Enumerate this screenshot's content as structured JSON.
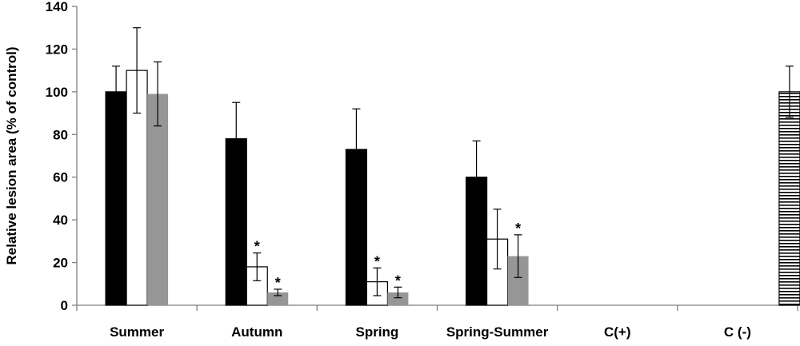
{
  "chart_data": {
    "type": "bar",
    "title": "",
    "xlabel": "",
    "ylabel": "Relative lesion area  (% of control)",
    "ylim": [
      0,
      140
    ],
    "yticks": [
      "0",
      "20",
      "40",
      "60",
      "80",
      "100",
      "120",
      "140"
    ],
    "grid": false,
    "legend": "none",
    "categories": [
      "Summer",
      "Autumn",
      "Spring",
      "Spring-Summer",
      "C(+)",
      "C (-)"
    ],
    "series": [
      {
        "color": "#000000",
        "fill": "solid",
        "values": [
          100,
          78,
          73,
          null,
          null,
          null
        ],
        "errors": [
          12,
          17,
          19,
          null,
          null,
          null
        ],
        "marks": [
          "",
          "",
          "",
          "",
          "",
          ""
        ]
      },
      {
        "color": "#000000",
        "fill": "solid",
        "values": [
          null,
          null,
          null,
          60,
          null,
          null
        ],
        "errors": [
          null,
          null,
          null,
          17,
          null,
          null
        ],
        "marks": [
          "",
          "",
          "",
          "",
          "",
          ""
        ]
      },
      {
        "color": "#ffffff",
        "fill": "outline",
        "values": [
          110,
          18,
          11,
          31,
          null,
          null
        ],
        "errors": [
          20,
          6.5,
          6.5,
          14,
          null,
          null
        ],
        "marks": [
          "",
          "*",
          "*",
          "",
          "",
          ""
        ]
      },
      {
        "color": "#969696",
        "fill": "solid",
        "values": [
          99,
          6,
          6,
          23,
          null,
          null
        ],
        "errors": [
          15,
          1.5,
          2.5,
          10,
          null,
          null
        ],
        "marks": [
          "",
          "*",
          "*",
          "*",
          "",
          ""
        ]
      },
      {
        "color": "#ffffff",
        "fill": "horizontal-stripes",
        "values": [
          null,
          null,
          null,
          null,
          null,
          100
        ],
        "errors": [
          null,
          null,
          null,
          null,
          null,
          12
        ],
        "marks": [
          "",
          "",
          "",
          "",
          "",
          ""
        ]
      }
    ]
  }
}
